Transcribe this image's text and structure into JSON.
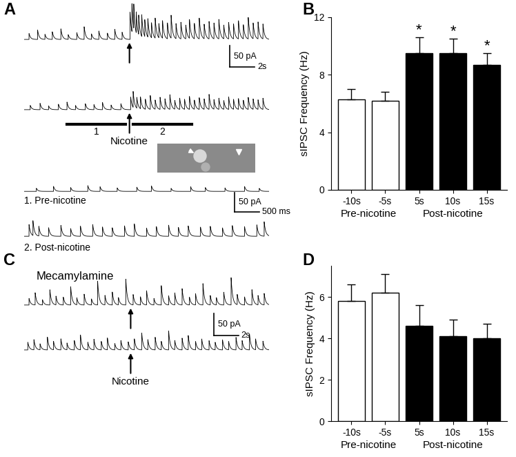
{
  "chart_data": [
    {
      "type": "trace",
      "panel": "A",
      "x": [
        0.4,
        1.1,
        1.7,
        2.3,
        3.0,
        3.6,
        4.3,
        4.9,
        5.5,
        6.1,
        6.8,
        7.4,
        8.0,
        8.65,
        8.8,
        8.95,
        9.15,
        9.35,
        9.6,
        9.85,
        10.1,
        10.4,
        10.7,
        11.0,
        11.3,
        11.7,
        12.0,
        12.4,
        12.8,
        13.2,
        13.5,
        13.9,
        14.3,
        14.7,
        15.1,
        15.5,
        15.9,
        16.3,
        16.7,
        17.1,
        17.5,
        17.9,
        18.3,
        18.7,
        19.1,
        19.5
      ],
      "values": [
        14,
        22,
        12,
        18,
        25,
        11,
        16,
        30,
        13,
        20,
        15,
        24,
        17,
        65,
        75,
        58,
        50,
        46,
        52,
        40,
        44,
        36,
        48,
        34,
        42,
        38,
        55,
        36,
        40,
        33,
        45,
        37,
        50,
        35,
        42,
        38,
        47,
        33,
        40,
        36,
        44,
        34,
        52,
        38,
        41,
        36
      ],
      "xlim": [
        0,
        20
      ],
      "ylim": [
        -70,
        85
      ],
      "tick_labels": false,
      "scale_bar": {
        "y": 50,
        "y_label": "50 pA",
        "x": 2,
        "x_label": "2s"
      },
      "annotations": [
        {
          "x": 8.6
        }
      ]
    },
    {
      "type": "trace",
      "x": [
        0.5,
        1.3,
        2.0,
        2.8,
        3.5,
        4.2,
        5.0,
        5.7,
        6.4,
        7.1,
        7.9,
        8.7,
        8.9,
        9.2,
        9.5,
        9.9,
        10.3,
        10.7,
        11.1,
        11.5,
        11.9,
        12.3,
        12.7,
        13.1,
        13.5,
        13.9,
        14.3,
        14.7,
        15.1,
        15.5,
        15.9,
        16.3,
        16.7,
        17.1,
        17.5,
        17.9,
        18.3,
        18.7,
        19.1,
        19.5
      ],
      "values": [
        10,
        15,
        9,
        13,
        18,
        10,
        14,
        12,
        17,
        11,
        14,
        30,
        38,
        26,
        28,
        24,
        33,
        22,
        29,
        25,
        35,
        21,
        27,
        24,
        31,
        22,
        28,
        25,
        36,
        23,
        27,
        21,
        30,
        24,
        26,
        22,
        29,
        25,
        23,
        27
      ],
      "xlim": [
        0,
        20
      ],
      "ylim": [
        -10,
        96
      ],
      "tick_labels": false,
      "annotations": [
        {
          "x": 8.6,
          "text": "Nicotine"
        }
      ],
      "windows": [
        {
          "label": "1",
          "x": [
            3.5,
            8.3
          ]
        },
        {
          "label": "2",
          "x": [
            8.9,
            13.7
          ]
        }
      ]
    },
    {
      "type": "trace",
      "title": "1. Pre-nicotine",
      "x": [
        0.25,
        0.6,
        0.95,
        1.3,
        1.55,
        1.9,
        2.3,
        2.6,
        3.0,
        3.4,
        3.7,
        4.1,
        4.5,
        4.8
      ],
      "values": [
        8,
        13,
        10,
        15,
        12,
        9,
        11,
        14,
        8,
        12,
        10,
        9,
        13,
        8
      ],
      "xlim": [
        0,
        5
      ],
      "ylim": [
        -5,
        45
      ],
      "tick_labels": false,
      "scale_bar": {
        "y": 50,
        "y_label": "50 pA",
        "x": 0.5,
        "x_label": "500 ms"
      }
    },
    {
      "type": "trace",
      "title": "2. Post-nicotine",
      "x": [
        0.1,
        0.18,
        0.3,
        0.5,
        0.75,
        0.95,
        1.15,
        1.4,
        1.6,
        1.8,
        2.05,
        2.25,
        2.5,
        2.7,
        2.95,
        3.15,
        3.35,
        3.6,
        3.8,
        4.05,
        4.25,
        4.5,
        4.75,
        4.9
      ],
      "values": [
        30,
        38,
        25,
        22,
        28,
        20,
        26,
        30,
        24,
        22,
        27,
        32,
        21,
        25,
        29,
        23,
        27,
        24,
        26,
        22,
        28,
        25,
        30,
        38
      ],
      "xlim": [
        0,
        5
      ],
      "ylim": [
        -5,
        75
      ],
      "tick_labels": false
    },
    {
      "type": "bar",
      "panel": "B",
      "categories": [
        "-10s",
        "-5s",
        "5s",
        "10s",
        "15s"
      ],
      "values": [
        6.3,
        6.2,
        9.5,
        9.5,
        8.7
      ],
      "errors": [
        0.7,
        0.6,
        1.1,
        1.0,
        0.8
      ],
      "colors": [
        "#ffffff",
        "#ffffff",
        "#000000",
        "#000000",
        "#000000"
      ],
      "y_label": "sIPSC Frequency (Hz)",
      "groups": [
        {
          "label": "Pre-nicotine",
          "count": 2
        },
        {
          "label": "Post-nicotine",
          "count": 3
        }
      ],
      "significant": [
        false,
        false,
        true,
        true,
        true
      ],
      "significance_label": "*",
      "ylim": [
        0,
        12
      ],
      "yticks": [
        0,
        4,
        8,
        12
      ]
    },
    {
      "type": "trace",
      "panel": "C",
      "title": "Mecamylamine",
      "x": [
        0.4,
        0.9,
        1.5,
        2.1,
        2.6,
        3.2,
        3.8,
        4.3,
        4.9,
        5.5,
        6.0,
        6.6,
        7.2,
        7.7,
        8.3,
        8.9,
        9.5,
        10.0,
        10.6,
        11.2,
        11.8,
        12.3,
        12.9,
        13.5,
        14.0,
        14.6,
        15.2,
        15.7,
        16.3,
        16.9,
        17.4,
        18.0,
        18.6,
        19.1,
        19.6
      ],
      "values": [
        15,
        28,
        12,
        35,
        20,
        18,
        42,
        16,
        25,
        14,
        55,
        22,
        30,
        17,
        60,
        24,
        19,
        33,
        15,
        45,
        21,
        28,
        38,
        18,
        26,
        50,
        22,
        17,
        30,
        64,
        24,
        19,
        36,
        22,
        27
      ],
      "xlim": [
        0,
        20
      ],
      "ylim": [
        -5,
        90
      ],
      "tick_labels": false,
      "scale_bar": {
        "y": 50,
        "y_label": "50 pA",
        "x": 2,
        "x_label": "2s"
      },
      "annotations": [
        {
          "x": 8.7
        }
      ]
    },
    {
      "type": "trace",
      "x": [
        0.3,
        0.8,
        1.3,
        1.9,
        2.4,
        3.0,
        3.5,
        4.1,
        4.6,
        5.2,
        5.7,
        6.3,
        6.8,
        7.4,
        7.9,
        8.5,
        9.0,
        9.6,
        10.1,
        10.7,
        11.2,
        11.8,
        12.3,
        12.9,
        13.4,
        14.0,
        14.5,
        15.1,
        15.6,
        16.2,
        16.7,
        17.3,
        17.8,
        18.4,
        18.9,
        19.5
      ],
      "values": [
        18,
        24,
        14,
        30,
        20,
        26,
        16,
        22,
        35,
        18,
        25,
        20,
        28,
        15,
        22,
        19,
        26,
        40,
        24,
        30,
        20,
        45,
        22,
        28,
        34,
        20,
        26,
        22,
        18,
        24,
        20,
        30,
        22,
        38,
        26,
        21
      ],
      "xlim": [
        0,
        20
      ],
      "ylim": [
        -5,
        84
      ],
      "tick_labels": false,
      "annotations": [
        {
          "x": 8.7,
          "text": "Nicotine"
        }
      ]
    },
    {
      "type": "bar",
      "panel": "D",
      "categories": [
        "-10s",
        "-5s",
        "5s",
        "10s",
        "15s"
      ],
      "values": [
        5.8,
        6.2,
        4.6,
        4.1,
        4.0
      ],
      "errors": [
        0.8,
        0.9,
        1.0,
        0.8,
        0.7
      ],
      "colors": [
        "#ffffff",
        "#ffffff",
        "#000000",
        "#000000",
        "#000000"
      ],
      "y_label": "sIPSC Frequency (Hz)",
      "groups": [
        {
          "label": "Pre-nicotine",
          "count": 2
        },
        {
          "label": "Post-nicotine",
          "count": 3
        }
      ],
      "ylim": [
        0,
        7.5
      ],
      "yticks": [
        0,
        2,
        4,
        6
      ]
    }
  ]
}
